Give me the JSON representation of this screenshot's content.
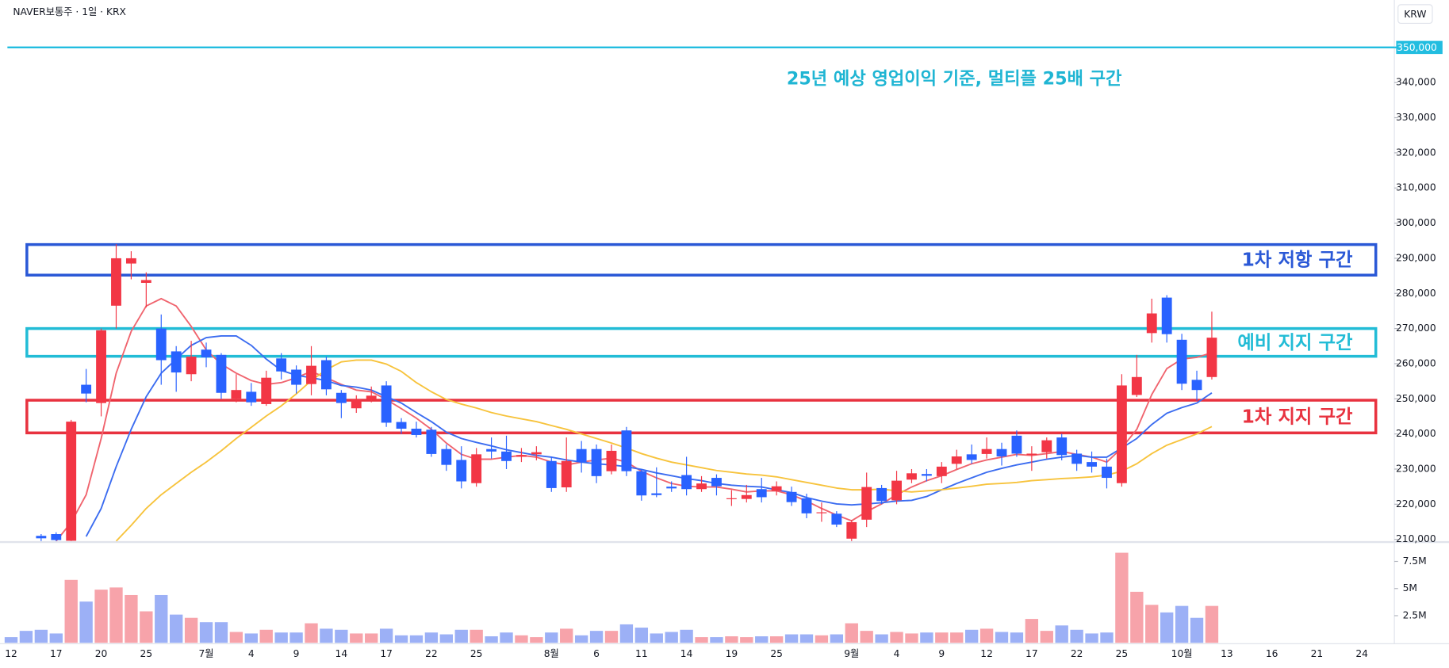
{
  "header": {
    "symbol": "NAVER보통주 · 1일 · KRX",
    "currency_button": "KRW"
  },
  "chart_data": {
    "type": "candlestick",
    "categories": [
      "12",
      null,
      null,
      "17",
      null,
      null,
      "20",
      null,
      null,
      "25",
      null,
      null,
      null,
      "7월",
      null,
      null,
      "4",
      null,
      null,
      "9",
      null,
      null,
      "14",
      null,
      null,
      "17",
      null,
      null,
      "22",
      null,
      null,
      "25",
      null,
      null,
      null,
      null,
      "8월",
      null,
      null,
      "6",
      null,
      null,
      "11",
      null,
      null,
      "14",
      null,
      null,
      "19",
      null,
      null,
      "25",
      null,
      null,
      null,
      null,
      "9월",
      null,
      null,
      "4",
      null,
      null,
      "9",
      null,
      null,
      "12",
      null,
      null,
      "17",
      null,
      null,
      "22",
      null,
      null,
      "25",
      null,
      null,
      null,
      "10월",
      null,
      null,
      "13",
      null,
      null,
      "16",
      null,
      null,
      "21",
      null,
      null,
      "24"
    ],
    "open": [
      null,
      null,
      211000,
      211500,
      209600,
      254000,
      248800,
      276500,
      288500,
      283000,
      270000,
      263500,
      257000,
      264000,
      262500,
      250000,
      252000,
      248500,
      261500,
      258300,
      254200,
      261000,
      251700,
      247300,
      249800,
      253800,
      243400,
      241500,
      241200,
      235700,
      232600,
      226000,
      235700,
      235000,
      233500,
      234200,
      232300,
      224800,
      235700,
      235700,
      229400,
      241000,
      229400,
      223100,
      225000,
      228300,
      224300,
      227500,
      221500,
      221500,
      224300,
      223800,
      223500,
      221700,
      217500,
      217300,
      210200,
      215600,
      224600,
      221100,
      227000,
      228600,
      228000,
      231500,
      234200,
      234300,
      235700,
      239500,
      234000,
      234800,
      239000,
      234400,
      232000,
      230700,
      226000,
      251100,
      268700,
      278800,
      266800,
      255400,
      256200,
      null,
      null,
      null,
      null,
      null,
      null,
      null,
      null,
      null,
      null
    ],
    "high": [
      null,
      null,
      211500,
      212000,
      244000,
      258500,
      270000,
      294000,
      292000,
      286000,
      274000,
      265000,
      266500,
      266000,
      263000,
      257000,
      254500,
      258000,
      263000,
      259500,
      265000,
      262000,
      252500,
      251000,
      253500,
      255000,
      244500,
      243500,
      242000,
      237000,
      236500,
      236000,
      239000,
      239500,
      236000,
      236500,
      233500,
      239000,
      238000,
      237000,
      237000,
      242000,
      230000,
      230500,
      226500,
      233500,
      228000,
      228500,
      224000,
      225500,
      227500,
      226500,
      225000,
      223000,
      220500,
      218000,
      215500,
      229000,
      225500,
      229500,
      230000,
      230000,
      232000,
      235500,
      237000,
      239000,
      237500,
      241000,
      236500,
      239000,
      240000,
      235500,
      235000,
      233000,
      257000,
      262500,
      278500,
      279500,
      268500,
      258000,
      274800,
      null,
      null,
      null,
      null,
      null,
      null,
      null,
      null,
      null,
      null
    ],
    "low": [
      null,
      null,
      209500,
      209500,
      209500,
      249000,
      245000,
      270000,
      284000,
      276000,
      254000,
      252000,
      255000,
      259000,
      250000,
      249000,
      248000,
      248000,
      255500,
      251500,
      251000,
      251000,
      244500,
      246000,
      249000,
      242000,
      240000,
      239000,
      233500,
      229500,
      224500,
      225000,
      233000,
      230000,
      232000,
      232500,
      223500,
      223500,
      229000,
      226000,
      228500,
      228000,
      221000,
      222000,
      223500,
      222500,
      223500,
      222500,
      219500,
      220500,
      220500,
      222500,
      219500,
      216000,
      215000,
      213500,
      209500,
      213500,
      220000,
      220000,
      226000,
      226500,
      226000,
      230000,
      231500,
      233000,
      231000,
      233500,
      229500,
      233000,
      232500,
      229500,
      229000,
      224500,
      225000,
      250500,
      266000,
      266000,
      252500,
      249500,
      255500,
      null,
      null,
      null,
      null,
      null,
      null,
      null,
      null,
      null,
      null
    ],
    "close": [
      null,
      null,
      210300,
      209800,
      243500,
      251500,
      269500,
      290000,
      290000,
      283800,
      261000,
      257500,
      262000,
      261800,
      251700,
      252500,
      249000,
      256000,
      257800,
      254000,
      259400,
      252700,
      248800,
      249800,
      250900,
      243200,
      241500,
      239700,
      234300,
      231200,
      226500,
      234200,
      235000,
      232300,
      234000,
      234800,
      224600,
      232300,
      232000,
      228000,
      235200,
      229400,
      222500,
      222600,
      224500,
      224300,
      225900,
      225100,
      221700,
      222600,
      222000,
      225100,
      220600,
      217400,
      217700,
      214200,
      214900,
      224900,
      220900,
      226700,
      228800,
      228100,
      230700,
      233600,
      232600,
      235700,
      233600,
      234400,
      234400,
      238200,
      234000,
      231500,
      230700,
      227500,
      253800,
      256200,
      274300,
      268400,
      254300,
      252500,
      267400,
      null,
      null,
      null,
      null,
      null,
      null,
      null,
      null,
      null,
      null
    ],
    "up_color": "#f23645",
    "down_color": "#2962ff",
    "moving_averages": [
      {
        "color": "#f0646e",
        "values": [
          null,
          null,
          null,
          209500,
          214800,
          222700,
          238700,
          257300,
          269200,
          276400,
          278500,
          276400,
          270600,
          263900,
          259900,
          257300,
          255200,
          254100,
          254600,
          256000,
          257800,
          256000,
          254100,
          252500,
          252000,
          249800,
          247200,
          244500,
          241300,
          237400,
          234200,
          232800,
          232800,
          233400,
          233900,
          233400,
          232000,
          231200,
          232000,
          232600,
          233100,
          232000,
          229400,
          227500,
          225900,
          225100,
          224900,
          224900,
          224300,
          223500,
          223800,
          223800,
          222700,
          220900,
          218800,
          216900,
          215300,
          217900,
          220100,
          222700,
          224900,
          226700,
          228100,
          229900,
          231500,
          232600,
          233400,
          234200,
          233900,
          234400,
          235000,
          234200,
          233400,
          232000,
          236000,
          241300,
          251200,
          258600,
          261300,
          261800,
          263100,
          null,
          null,
          null,
          null,
          null,
          null,
          null,
          null,
          null,
          null
        ]
      },
      {
        "color": "#3b6cf0",
        "values": [
          null,
          null,
          null,
          null,
          null,
          210800,
          218800,
          230700,
          241300,
          250600,
          257300,
          261300,
          265200,
          267400,
          267900,
          267900,
          265200,
          261300,
          258100,
          256700,
          256000,
          255200,
          253800,
          253300,
          252500,
          250600,
          248800,
          246100,
          243500,
          240500,
          238700,
          237600,
          236600,
          235500,
          234700,
          233900,
          233400,
          232600,
          232000,
          231500,
          231200,
          230700,
          229900,
          228900,
          228100,
          227300,
          226700,
          225900,
          225400,
          225100,
          224900,
          224100,
          223300,
          221900,
          220900,
          220100,
          219800,
          220100,
          220400,
          220900,
          221100,
          222200,
          224100,
          225900,
          227500,
          229100,
          230200,
          231200,
          232000,
          232800,
          233400,
          233900,
          233400,
          233400,
          236000,
          238700,
          242700,
          245900,
          247500,
          248800,
          251700,
          null,
          null,
          null,
          null,
          null,
          null,
          null,
          null,
          null,
          null
        ]
      },
      {
        "color": "#f7c33c",
        "values": [
          null,
          null,
          null,
          null,
          null,
          null,
          null,
          209500,
          214000,
          218800,
          222700,
          225900,
          229100,
          232000,
          235200,
          238700,
          241900,
          245100,
          248000,
          251400,
          255200,
          258300,
          260500,
          261000,
          261000,
          259900,
          257800,
          254600,
          252000,
          249800,
          248500,
          247400,
          246100,
          245100,
          244300,
          243500,
          242400,
          241300,
          240000,
          238700,
          237400,
          236000,
          234400,
          233100,
          232000,
          231200,
          230400,
          229600,
          229100,
          228600,
          228300,
          227800,
          227000,
          226200,
          225400,
          224600,
          224100,
          224100,
          224300,
          223800,
          223500,
          223800,
          224100,
          224600,
          225100,
          225700,
          225900,
          226200,
          226700,
          227000,
          227300,
          227500,
          227800,
          228300,
          229400,
          231500,
          234400,
          236800,
          238400,
          240000,
          242100,
          null,
          null,
          null,
          null,
          null,
          null,
          null,
          null,
          null,
          null
        ]
      }
    ],
    "volume": {
      "values": [
        0.52,
        1.1,
        1.2,
        0.86,
        5.8,
        3.8,
        4.9,
        5.1,
        4.4,
        2.9,
        4.4,
        2.6,
        2.3,
        1.9,
        1.9,
        1.0,
        0.86,
        1.2,
        0.95,
        0.95,
        1.8,
        1.3,
        1.2,
        0.86,
        0.86,
        1.3,
        0.69,
        0.69,
        0.95,
        0.78,
        1.2,
        1.2,
        0.6,
        0.95,
        0.69,
        0.52,
        0.95,
        1.3,
        0.69,
        1.1,
        1.1,
        1.7,
        1.4,
        0.86,
        1.0,
        1.2,
        0.52,
        0.52,
        0.6,
        0.52,
        0.6,
        0.6,
        0.78,
        0.78,
        0.69,
        0.78,
        1.8,
        1.1,
        0.78,
        1.0,
        0.86,
        0.95,
        0.95,
        0.95,
        1.2,
        1.3,
        1.0,
        0.95,
        2.2,
        1.1,
        1.6,
        1.2,
        0.86,
        0.95,
        8.3,
        4.7,
        3.5,
        2.8,
        3.4,
        2.3,
        3.4,
        null,
        null,
        null,
        null,
        null,
        null,
        null,
        null,
        null,
        null
      ],
      "up_color": "#f7a3aa",
      "down_color": "#9cb0f6",
      "ylim": [
        0,
        9.2
      ],
      "yticks": [
        {
          "value": 2.5,
          "label": "2.5M"
        },
        {
          "value": 5,
          "label": "5M"
        },
        {
          "value": 7.5,
          "label": "7.5M"
        }
      ]
    },
    "ylim": [
      209500,
      363500
    ],
    "yticks": [
      {
        "value": 210000,
        "label": "210,000"
      },
      {
        "value": 220000,
        "label": "220,000"
      },
      {
        "value": 230000,
        "label": "230,000"
      },
      {
        "value": 240000,
        "label": "240,000"
      },
      {
        "value": 250000,
        "label": "250,000"
      },
      {
        "value": 260000,
        "label": "260,000"
      },
      {
        "value": 270000,
        "label": "270,000"
      },
      {
        "value": 280000,
        "label": "280,000"
      },
      {
        "value": 290000,
        "label": "290,000"
      },
      {
        "value": 300000,
        "label": "300,000"
      },
      {
        "value": 310000,
        "label": "310,000"
      },
      {
        "value": 320000,
        "label": "320,000"
      },
      {
        "value": 330000,
        "label": "330,000"
      },
      {
        "value": 340000,
        "label": "340,000"
      }
    ],
    "hline": {
      "value": 350000,
      "label": "350,000",
      "color": "#22bde0"
    },
    "annotation": "25년 예상 영업이익 기준, 멀티플 25배 구간",
    "annotation_color": "#1fb5d3",
    "zones": [
      {
        "label": "1차 저항 구간",
        "top": 293900,
        "bottom": 285200,
        "color": "#2a58d6"
      },
      {
        "label": "예비 지지 구간",
        "top": 270000,
        "bottom": 262100,
        "color": "#22bcd6"
      },
      {
        "label": "1차 지지 구간",
        "top": 249600,
        "bottom": 240300,
        "color": "#e8323f"
      }
    ],
    "grid": false
  }
}
